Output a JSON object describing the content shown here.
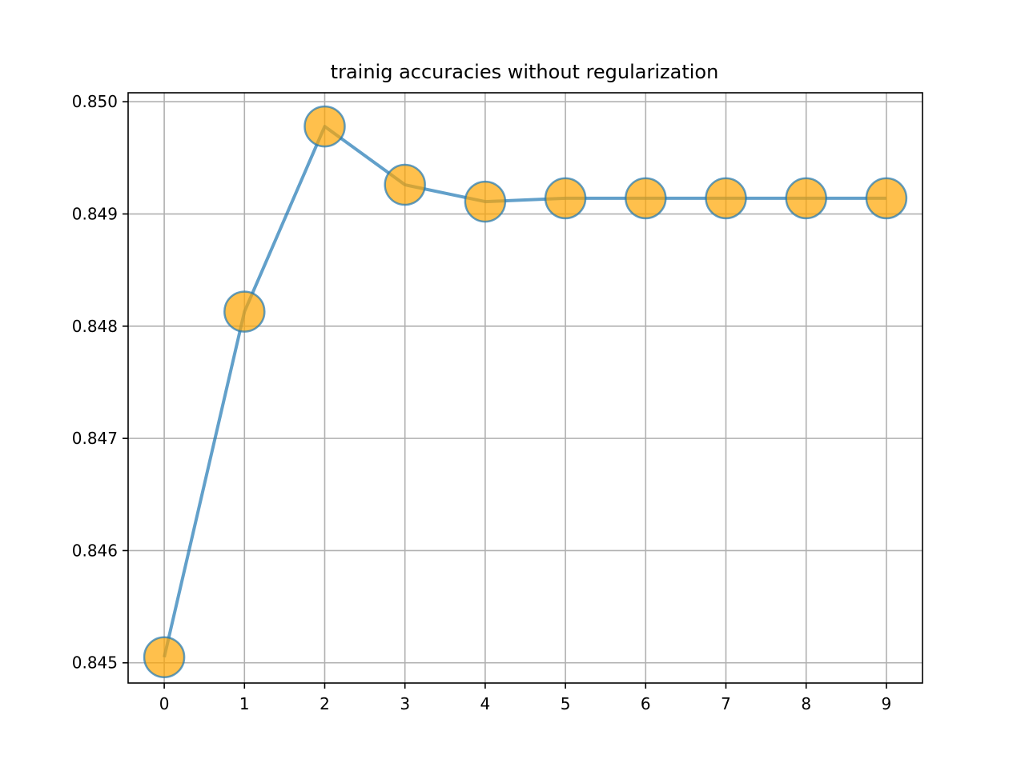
{
  "chart_data": {
    "type": "line",
    "title": "trainig accuracies without regularization",
    "xlabel": "",
    "ylabel": "",
    "x": [
      0,
      1,
      2,
      3,
      4,
      5,
      6,
      7,
      8,
      9
    ],
    "x_ticks": [
      "0",
      "1",
      "2",
      "3",
      "4",
      "5",
      "6",
      "7",
      "8",
      "9"
    ],
    "y_ticks": [
      "0.845",
      "0.846",
      "0.847",
      "0.848",
      "0.849",
      "0.850"
    ],
    "xlim": [
      -0.45,
      9.45
    ],
    "ylim": [
      0.84482,
      0.85008
    ],
    "grid": true,
    "legend": "none",
    "series": [
      {
        "values": [
          0.84505,
          0.84813,
          0.84978,
          0.84926,
          0.84911,
          0.84914,
          0.84914,
          0.84914,
          0.84914,
          0.84914
        ],
        "line_color": "#1f77b4",
        "marker_color": "#ffa500"
      }
    ]
  }
}
